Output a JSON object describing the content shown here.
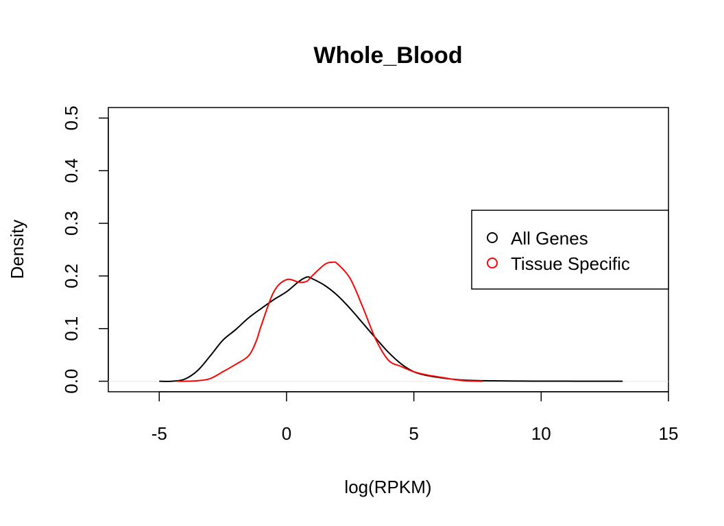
{
  "chart_data": {
    "type": "line",
    "title": "Whole_Blood",
    "xlabel": "log(RPKM)",
    "ylabel": "Density",
    "xlim": [
      -7,
      15
    ],
    "ylim": [
      -0.02,
      0.52
    ],
    "xticks": [
      -5,
      0,
      5,
      10,
      15
    ],
    "xtick_labels": [
      "-5",
      "0",
      "5",
      "10",
      "15"
    ],
    "yticks": [
      0.0,
      0.1,
      0.2,
      0.3,
      0.4,
      0.5
    ],
    "ytick_labels": [
      "0.0",
      "0.1",
      "0.2",
      "0.3",
      "0.4",
      "0.5"
    ],
    "grid": false,
    "legend_position": "right",
    "series": [
      {
        "name": "All Genes",
        "color": "#000000",
        "x": [
          -5.0,
          -4.5,
          -4.0,
          -3.5,
          -3.0,
          -2.5,
          -2.0,
          -1.5,
          -1.0,
          -0.5,
          0.0,
          0.5,
          0.8,
          1.0,
          1.5,
          2.0,
          2.5,
          3.0,
          3.5,
          4.0,
          4.5,
          5.0,
          5.5,
          6.0,
          6.5,
          7.0,
          8.0,
          9.0,
          10.0,
          11.0,
          12.0,
          13.2
        ],
        "values": [
          0.0,
          0.0,
          0.004,
          0.02,
          0.048,
          0.078,
          0.098,
          0.12,
          0.138,
          0.155,
          0.17,
          0.19,
          0.198,
          0.195,
          0.182,
          0.163,
          0.138,
          0.11,
          0.082,
          0.055,
          0.033,
          0.018,
          0.011,
          0.007,
          0.004,
          0.002,
          0.0008,
          0.0003,
          0.0002,
          0.0001,
          0.0,
          0.0
        ]
      },
      {
        "name": "Tissue Specific",
        "color": "#ff0000",
        "x": [
          -4.3,
          -4.0,
          -3.5,
          -3.0,
          -2.5,
          -2.0,
          -1.5,
          -1.2,
          -1.0,
          -0.5,
          0.0,
          0.5,
          0.8,
          1.0,
          1.5,
          1.8,
          2.0,
          2.5,
          3.0,
          3.5,
          4.0,
          4.5,
          5.0,
          5.5,
          6.0,
          6.5,
          7.0,
          7.7
        ],
        "values": [
          0.0,
          0.0,
          0.001,
          0.005,
          0.018,
          0.032,
          0.048,
          0.075,
          0.105,
          0.17,
          0.193,
          0.188,
          0.19,
          0.2,
          0.222,
          0.226,
          0.223,
          0.195,
          0.14,
          0.08,
          0.04,
          0.028,
          0.018,
          0.012,
          0.008,
          0.004,
          0.001,
          0.0
        ]
      }
    ]
  }
}
